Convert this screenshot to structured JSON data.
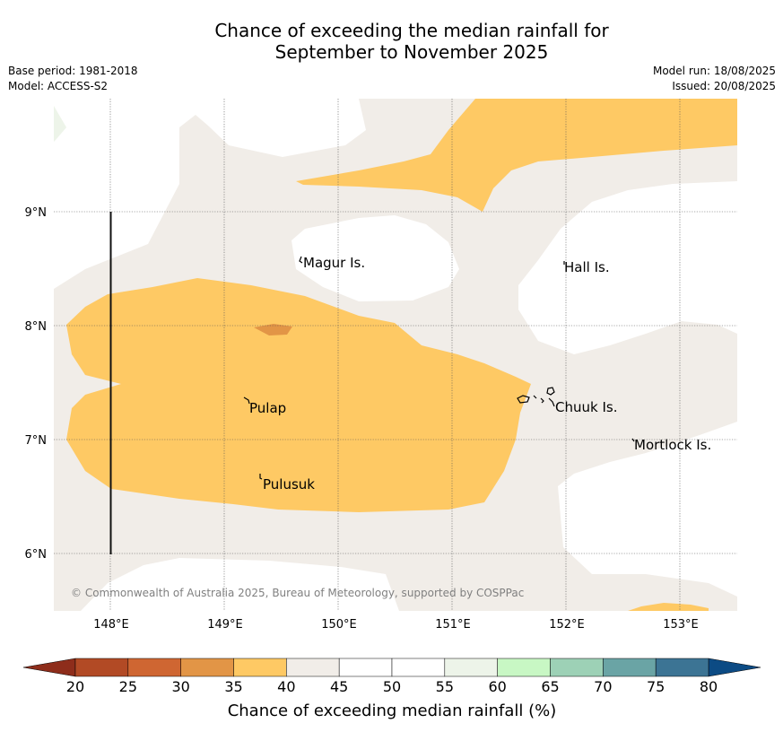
{
  "header": {
    "title_line1": "Chance of exceeding the median rainfall for",
    "title_line2": "September to November 2025",
    "base_period": "Base period: 1981-2018",
    "model": "Model: ACCESS-S2",
    "model_run": "Model run: 18/08/2025",
    "issued": "Issued: 20/08/2025"
  },
  "map": {
    "lon_labels": [
      "148°E",
      "149°E",
      "150°E",
      "151°E",
      "152°E",
      "153°E"
    ],
    "lat_labels": [
      "9°N",
      "8°N",
      "7°N",
      "6°N"
    ],
    "places": [
      "Magur Is.",
      "Hall Is.",
      "Pulap",
      "Chuuk Is.",
      "Mortlock Is.",
      "Pulusuk"
    ],
    "credit": "© Commonwealth of Australia 2025, Bureau of Meteorology, supported by COSPPac"
  },
  "colorbar": {
    "ticks": [
      "20",
      "25",
      "30",
      "35",
      "40",
      "45",
      "50",
      "55",
      "60",
      "65",
      "70",
      "75",
      "80"
    ],
    "colors": [
      "#b24a25",
      "#cf6632",
      "#e29546",
      "#fec964",
      "#f1ede8",
      "#ffffff",
      "#ffffff",
      "#edf4e9",
      "#c8f7c4",
      "#9dd1b6",
      "#6aa4a5",
      "#3c7494"
    ],
    "under_color": "#8e2d1b",
    "over_color": "#0c4b84",
    "label": "Chance of exceeding median rainfall (%)"
  }
}
